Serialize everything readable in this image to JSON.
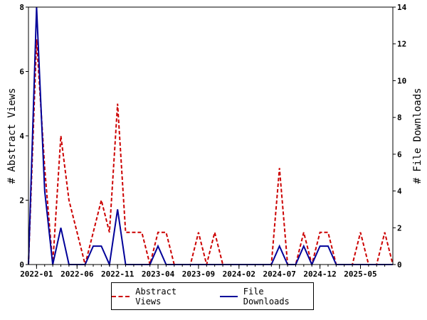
{
  "chart_data": {
    "type": "line",
    "xlabel": "",
    "ylabel": "# Abstract Views",
    "y2label": "# File Downloads",
    "ylim": [
      0,
      8
    ],
    "y2lim": [
      0,
      14
    ],
    "yticks": [
      0,
      2,
      4,
      6,
      8
    ],
    "y2ticks": [
      0,
      2,
      4,
      6,
      8,
      10,
      12,
      14
    ],
    "x_tick_labels": [
      "2022-01",
      "2022-06",
      "2022-11",
      "2023-04",
      "2023-09",
      "2024-02",
      "2024-07",
      "2024-12",
      "2025-05"
    ],
    "x_tick_month_index": [
      0,
      5,
      10,
      15,
      20,
      25,
      30,
      35,
      40
    ],
    "x_start_month_index": -1,
    "x_end_month_index": 44,
    "legend_position": "bottom",
    "series": [
      {
        "name": "Abstract Views",
        "axis": "left",
        "color": "#cc0000",
        "style": "dashed",
        "values": [
          0,
          7,
          3,
          0,
          4,
          2,
          1,
          0,
          1,
          2,
          1,
          5,
          1,
          1,
          1,
          0,
          1,
          1,
          0,
          0,
          0,
          1,
          0,
          1,
          0,
          0,
          0,
          0,
          0,
          0,
          0,
          3,
          0,
          0,
          1,
          0,
          1,
          1,
          0,
          0,
          0,
          1,
          0,
          0,
          1,
          0
        ]
      },
      {
        "name": "File Downloads",
        "axis": "right",
        "color": "#000099",
        "style": "solid",
        "values": [
          0,
          14,
          4,
          0,
          2,
          0,
          0,
          0,
          1,
          1,
          0,
          3,
          0,
          0,
          0,
          0,
          1,
          0,
          0,
          0,
          0,
          0,
          0,
          0,
          0,
          0,
          0,
          0,
          0,
          0,
          0,
          1,
          0,
          0,
          1,
          0,
          1,
          1,
          0,
          0,
          0,
          0,
          0,
          0,
          0,
          0
        ]
      }
    ]
  }
}
